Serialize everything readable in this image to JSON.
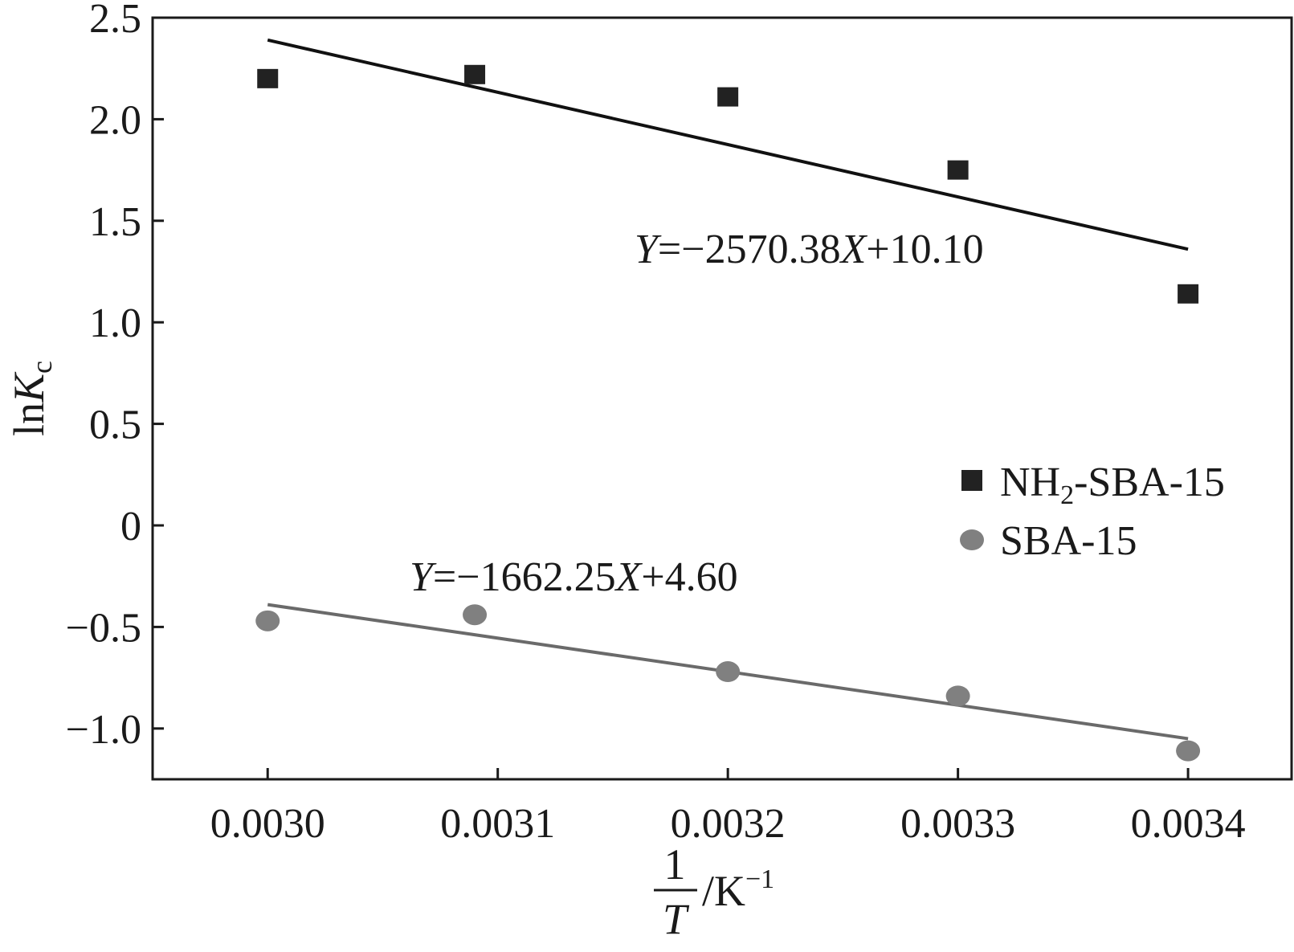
{
  "chart_data": {
    "type": "scatter",
    "title": "",
    "xlabel": {
      "numerator": "1",
      "denominator": "T",
      "unit_base": "/K",
      "unit_exp": "−1"
    },
    "ylabel": {
      "prefix": "ln",
      "var": "K",
      "sub": "c"
    },
    "xlim": [
      0.00295,
      0.003445
    ],
    "ylim": [
      -1.25,
      2.5
    ],
    "x_ticks": [
      {
        "value": 0.003,
        "label": "0.0030"
      },
      {
        "value": 0.0031,
        "label": "0.0031"
      },
      {
        "value": 0.0032,
        "label": "0.0032"
      },
      {
        "value": 0.0033,
        "label": "0.0033"
      },
      {
        "value": 0.0034,
        "label": "0.0034"
      }
    ],
    "y_ticks": [
      {
        "value": 2.5,
        "label": "2.5"
      },
      {
        "value": 2.0,
        "label": "2.0"
      },
      {
        "value": 1.5,
        "label": "1.5"
      },
      {
        "value": 1.0,
        "label": "1.0"
      },
      {
        "value": 0.5,
        "label": "0.5"
      },
      {
        "value": 0,
        "label": "0"
      },
      {
        "value": -0.5,
        "label": "−0.5"
      },
      {
        "value": -1.0,
        "label": "−1.0"
      }
    ],
    "grid": false,
    "legend_position": "right",
    "series": [
      {
        "name_main": "NH",
        "name_sub": "2",
        "name_rest": "-SBA-15",
        "marker": "square",
        "color": "#222222",
        "points": [
          {
            "x": 0.003,
            "y": 2.2
          },
          {
            "x": 0.00309,
            "y": 2.22
          },
          {
            "x": 0.0032,
            "y": 2.11
          },
          {
            "x": 0.0033,
            "y": 1.75
          },
          {
            "x": 0.0034,
            "y": 1.14
          }
        ],
        "fit": {
          "x": [
            0.003,
            0.0034
          ],
          "y": [
            2.39,
            1.36
          ],
          "line_color": "#111111"
        },
        "equation": {
          "y_var": "Y",
          "mid": "=−2570.38",
          "x_var": "X",
          "tail": "+10.10"
        }
      },
      {
        "name_main": "SBA-15",
        "name_sub": "",
        "name_rest": "",
        "marker": "circle",
        "color": "#808080",
        "points": [
          {
            "x": 0.003,
            "y": -0.47
          },
          {
            "x": 0.00309,
            "y": -0.44
          },
          {
            "x": 0.0032,
            "y": -0.72
          },
          {
            "x": 0.0033,
            "y": -0.84
          },
          {
            "x": 0.0034,
            "y": -1.11
          }
        ],
        "fit": {
          "x": [
            0.003,
            0.0034
          ],
          "y": [
            -0.39,
            -1.05
          ],
          "line_color": "#6a6a6a"
        },
        "equation": {
          "y_var": "Y",
          "mid": "=−1662.25",
          "x_var": "X",
          "tail": "+4.60"
        }
      }
    ]
  }
}
